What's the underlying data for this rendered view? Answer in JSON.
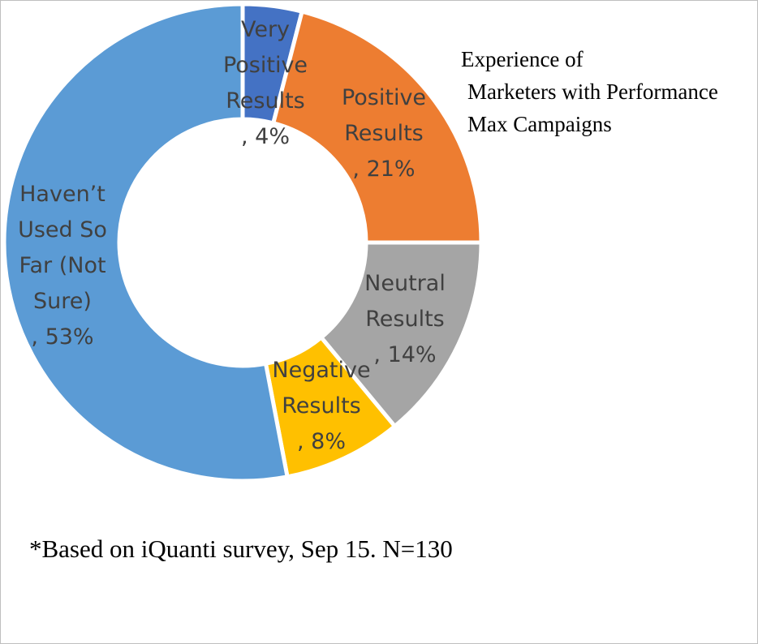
{
  "title_lines": [
    "Experience of",
    "Marketers with Performance",
    "Max Campaigns"
  ],
  "footnote": "*Based on iQuanti survey, Sep 15. N=130",
  "chart_data": {
    "type": "pie",
    "donut": true,
    "title": "Experience of Marketers with Performance Max Campaigns",
    "slices": [
      {
        "label": "Very Positive Results",
        "value": 4,
        "display": "4%",
        "color": "#4472c4",
        "label_lines": [
          "Very",
          "Positive",
          "Results",
          ", 4%"
        ]
      },
      {
        "label": "Positive Results",
        "value": 21,
        "display": "21%",
        "color": "#ed7d31",
        "label_lines": [
          "Positive",
          "Results",
          ", 21%"
        ]
      },
      {
        "label": "Neutral Results",
        "value": 14,
        "display": "14%",
        "color": "#a5a5a5",
        "label_lines": [
          "Neutral",
          "Results",
          ", 14%"
        ]
      },
      {
        "label": "Negative Results",
        "value": 8,
        "display": "8%",
        "color": "#ffc000",
        "label_lines": [
          "Negative",
          "Results",
          ", 8%"
        ]
      },
      {
        "label": "Haven’t Used So Far (Not Sure)",
        "value": 53,
        "display": "53%",
        "color": "#5b9bd5",
        "label_lines": [
          "Haven’t",
          "Used So",
          "Far (Not",
          "Sure)",
          ", 53%"
        ]
      }
    ]
  }
}
